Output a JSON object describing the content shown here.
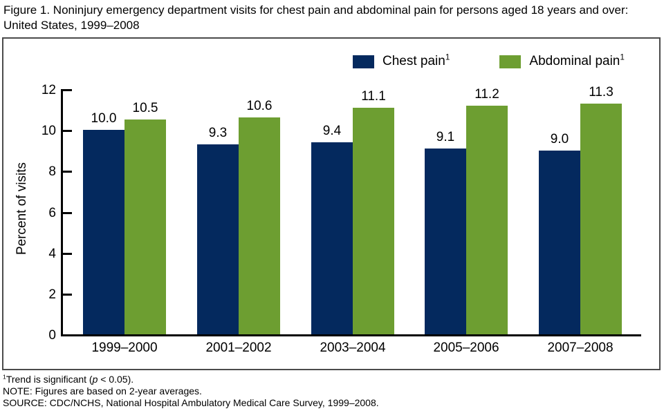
{
  "title_lines": [
    "Figure 1. Noninjury emergency department visits for chest pain and abdominal pain for persons aged 18 years and over:",
    "United States, 1999–2008"
  ],
  "chart_data": {
    "type": "bar",
    "title": "Figure 1. Noninjury emergency department visits for chest pain and abdominal pain for persons aged 18 years and over: United States, 1999–2008",
    "categories": [
      "1999–2000",
      "2001–2002",
      "2003–2004",
      "2005–2006",
      "2007–2008"
    ],
    "series": [
      {
        "name": "Chest pain",
        "footnote_marker": "1",
        "color": "#04295e",
        "values": [
          10.0,
          9.3,
          9.4,
          9.1,
          9.0
        ]
      },
      {
        "name": "Abdominal pain",
        "footnote_marker": "1",
        "color": "#6d9e31",
        "values": [
          10.5,
          10.6,
          11.1,
          11.2,
          11.3
        ]
      }
    ],
    "xlabel": "",
    "ylabel": "Percent of visits",
    "ylim": [
      0,
      12
    ],
    "yticks": [
      0,
      2,
      4,
      6,
      8,
      10,
      12
    ],
    "grid": "off",
    "legend_position": "top-center-inside",
    "value_labels": "above-bars"
  },
  "footnotes": {
    "significance_marker": "1",
    "significance_pre": "Trend is significant (",
    "significance_var": "p",
    "significance_post": " < 0.05).",
    "note": "NOTE: Figures are based on 2-year averages.",
    "source": "SOURCE: CDC/NCHS, National Hospital Ambulatory Medical Care Survey, 1999–2008."
  },
  "colors": {
    "chest_pain": "#04295e",
    "abdominal_pain": "#6d9e31",
    "axis": "#000000",
    "frame_border": "#4a4a4a"
  }
}
